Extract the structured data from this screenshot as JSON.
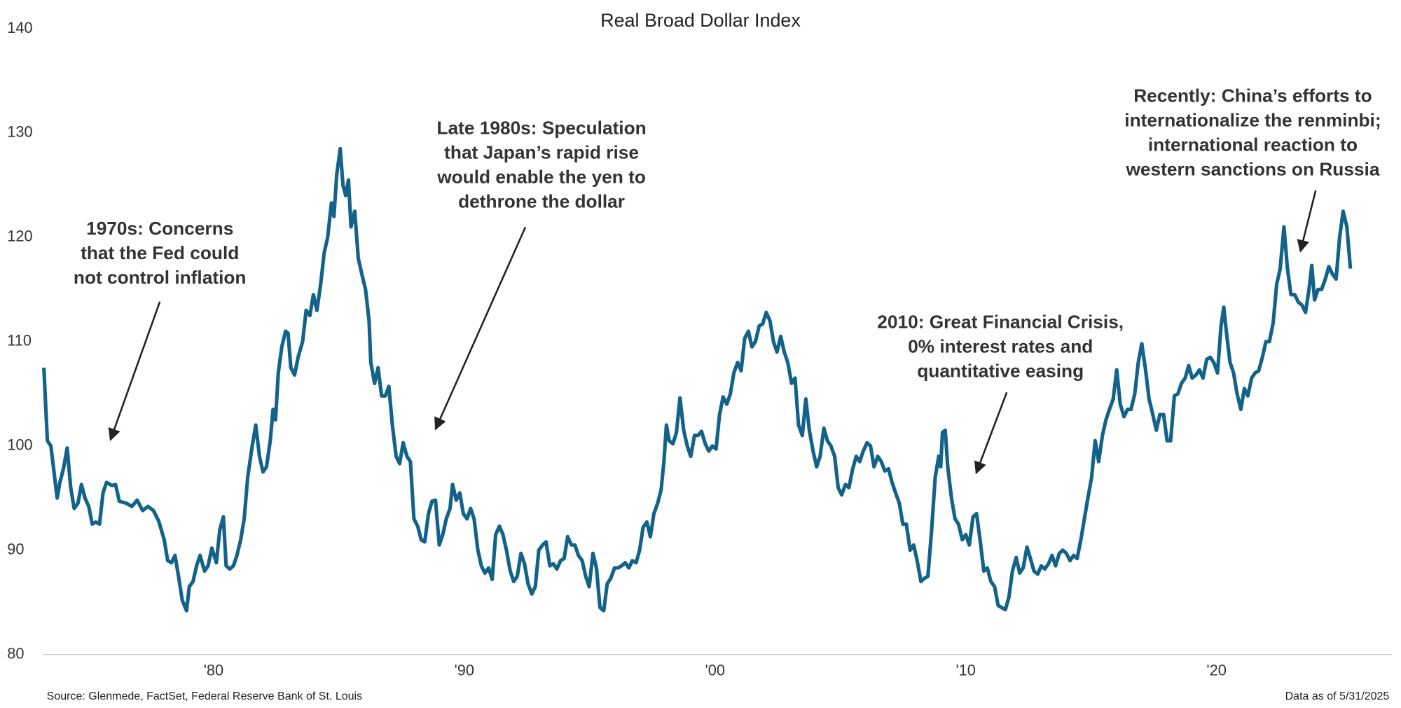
{
  "chart_data": {
    "type": "line",
    "title": "Real Broad Dollar Index",
    "color": "#13628a",
    "source": "Source: Glenmede, FactSet, Federal Reserve Bank of St. Louis",
    "note": "Data as of 5/31/2025",
    "xlim": [
      1973.2,
      2027
    ],
    "ylim": [
      80,
      140
    ],
    "yticks": [
      80,
      90,
      100,
      110,
      120,
      130,
      140
    ],
    "xticks": [
      {
        "value": 1980,
        "label": "'80"
      },
      {
        "value": 1990,
        "label": "'90"
      },
      {
        "value": 2000,
        "label": "'00"
      },
      {
        "value": 2010,
        "label": "'10"
      },
      {
        "value": 2020,
        "label": "'20"
      }
    ],
    "annotations": [
      {
        "lines": [
          "1970s: Concerns",
          "that the Fed could",
          "not control inflation"
        ]
      },
      {
        "lines": [
          "Late 1980s: Speculation",
          "that Japan’s rapid rise",
          "would enable the yen to",
          "dethrone the dollar"
        ]
      },
      {
        "lines": [
          "2010: Great Financial Crisis,",
          "0% interest rates and",
          "quantitative easing"
        ]
      },
      {
        "lines": [
          "Recently: China’s efforts to",
          "internationalize the renminbi;",
          "international reaction to",
          "western sanctions on Russia"
        ]
      }
    ],
    "x": [
      1973.23,
      1973.37,
      1973.51,
      1973.66,
      1973.76,
      1973.87,
      1974.01,
      1974.16,
      1974.3,
      1974.44,
      1974.59,
      1974.73,
      1974.87,
      1975.02,
      1975.16,
      1975.3,
      1975.45,
      1975.59,
      1975.73,
      1975.95,
      1976.09,
      1976.24,
      1976.52,
      1976.74,
      1976.95,
      1977.17,
      1977.38,
      1977.6,
      1977.81,
      1978.03,
      1978.17,
      1978.32,
      1978.46,
      1978.6,
      1978.75,
      1978.92,
      1979.03,
      1979.18,
      1979.32,
      1979.46,
      1979.64,
      1979.78,
      1979.93,
      1980.11,
      1980.25,
      1980.39,
      1980.5,
      1980.65,
      1980.79,
      1980.93,
      1981.08,
      1981.22,
      1981.36,
      1981.54,
      1981.68,
      1981.83,
      1981.97,
      1982.11,
      1982.26,
      1982.37,
      1982.47,
      1982.58,
      1982.72,
      1982.87,
      1982.97,
      1983.08,
      1983.23,
      1983.37,
      1983.55,
      1983.69,
      1983.84,
      1983.98,
      1984.12,
      1984.27,
      1984.41,
      1984.55,
      1984.7,
      1984.8,
      1984.91,
      1985.05,
      1985.16,
      1985.27,
      1985.38,
      1985.48,
      1985.63,
      1985.77,
      1985.91,
      1986.06,
      1986.2,
      1986.27,
      1986.42,
      1986.56,
      1986.7,
      1986.85,
      1986.99,
      1987.13,
      1987.28,
      1987.42,
      1987.56,
      1987.71,
      1987.85,
      1987.99,
      1988.14,
      1988.28,
      1988.42,
      1988.57,
      1988.71,
      1988.85,
      1989.0,
      1989.14,
      1989.28,
      1989.43,
      1989.53,
      1989.68,
      1989.82,
      1989.96,
      1990.11,
      1990.25,
      1990.39,
      1990.54,
      1990.68,
      1990.82,
      1990.97,
      1991.11,
      1991.25,
      1991.4,
      1991.54,
      1991.68,
      1991.83,
      1991.97,
      1992.11,
      1992.26,
      1992.4,
      1992.54,
      1992.69,
      1992.83,
      1992.97,
      1993.12,
      1993.26,
      1993.41,
      1993.55,
      1993.69,
      1993.84,
      1993.98,
      1994.12,
      1994.27,
      1994.41,
      1994.55,
      1994.7,
      1994.84,
      1994.98,
      1995.13,
      1995.27,
      1995.41,
      1995.56,
      1995.7,
      1995.84,
      1995.99,
      1996.13,
      1996.27,
      1996.42,
      1996.56,
      1996.7,
      1996.85,
      1996.99,
      1997.13,
      1997.28,
      1997.42,
      1997.56,
      1997.71,
      1997.85,
      1997.96,
      1998.06,
      1998.17,
      1998.32,
      1998.46,
      1998.6,
      1998.75,
      1998.89,
      1999.03,
      1999.18,
      1999.32,
      1999.46,
      1999.61,
      1999.75,
      1999.89,
      2000.04,
      2000.18,
      2000.32,
      2000.47,
      2000.61,
      2000.75,
      2000.9,
      2001.04,
      2001.18,
      2001.33,
      2001.47,
      2001.61,
      2001.76,
      2001.9,
      2002.04,
      2002.19,
      2002.33,
      2002.47,
      2002.62,
      2002.76,
      2002.9,
      2003.05,
      2003.19,
      2003.33,
      2003.48,
      2003.62,
      2003.76,
      2003.91,
      2004.05,
      2004.19,
      2004.34,
      2004.48,
      2004.62,
      2004.77,
      2004.91,
      2005.05,
      2005.2,
      2005.34,
      2005.48,
      2005.63,
      2005.77,
      2005.91,
      2006.06,
      2006.2,
      2006.34,
      2006.49,
      2006.63,
      2006.77,
      2006.92,
      2007.06,
      2007.2,
      2007.35,
      2007.49,
      2007.63,
      2007.78,
      2007.92,
      2008.06,
      2008.21,
      2008.35,
      2008.49,
      2008.64,
      2008.78,
      2008.92,
      2009.0,
      2009.07,
      2009.18,
      2009.28,
      2009.43,
      2009.57,
      2009.71,
      2009.86,
      2010.0,
      2010.14,
      2010.29,
      2010.43,
      2010.57,
      2010.72,
      2010.86,
      2011.0,
      2011.15,
      2011.29,
      2011.43,
      2011.58,
      2011.72,
      2011.86,
      2012.01,
      2012.15,
      2012.29,
      2012.44,
      2012.58,
      2012.72,
      2012.87,
      2013.01,
      2013.15,
      2013.3,
      2013.44,
      2013.58,
      2013.73,
      2013.87,
      2014.01,
      2014.16,
      2014.3,
      2014.44,
      2014.59,
      2014.73,
      2014.87,
      2015.02,
      2015.16,
      2015.3,
      2015.45,
      2015.59,
      2015.73,
      2015.88,
      2016.02,
      2016.16,
      2016.31,
      2016.45,
      2016.59,
      2016.74,
      2016.88,
      2017.02,
      2017.17,
      2017.31,
      2017.46,
      2017.6,
      2017.74,
      2017.89,
      2018.03,
      2018.17,
      2018.32,
      2018.46,
      2018.6,
      2018.75,
      2018.89,
      2019.03,
      2019.18,
      2019.32,
      2019.46,
      2019.61,
      2019.75,
      2019.89,
      2020.04,
      2020.18,
      2020.29,
      2020.39,
      2020.54,
      2020.68,
      2020.82,
      2020.97,
      2021.11,
      2021.25,
      2021.4,
      2021.54,
      2021.68,
      2021.83,
      2021.97,
      2022.11,
      2022.26,
      2022.4,
      2022.54,
      2022.69,
      2022.83,
      2022.97,
      2023.12,
      2023.26,
      2023.41,
      2023.55,
      2023.69,
      2023.8,
      2023.91,
      2024.05,
      2024.19,
      2024.34,
      2024.48,
      2024.62,
      2024.77,
      2024.91,
      2025.05,
      2025.2,
      2025.34
    ],
    "values": [
      107.5,
      100.5,
      100,
      97,
      95,
      96.5,
      97.8,
      99.8,
      96,
      94,
      94.5,
      96.3,
      95,
      94.2,
      92.5,
      92.7,
      92.5,
      95.5,
      96.5,
      96.2,
      96.3,
      94.7,
      94.5,
      94.2,
      94.8,
      93.8,
      94.2,
      93.8,
      92.8,
      91,
      89,
      88.8,
      89.5,
      87.5,
      85.2,
      84.2,
      86.5,
      87,
      88.5,
      89.5,
      88,
      88.5,
      90.2,
      88.8,
      92,
      93.2,
      88.5,
      88.2,
      88.5,
      89.5,
      91,
      93,
      97,
      100,
      102,
      99,
      97.5,
      98,
      100.5,
      103.5,
      102.5,
      107,
      109.5,
      111,
      110.8,
      107.5,
      106.8,
      108.5,
      110,
      113,
      112.5,
      114.5,
      113,
      115.5,
      118.5,
      120,
      123.3,
      122,
      126,
      128.5,
      125,
      124,
      125.5,
      121,
      122.5,
      118,
      116.5,
      115,
      112,
      108,
      106,
      107.5,
      104.8,
      104.8,
      105.7,
      102,
      99,
      98.3,
      100.3,
      99,
      98.5,
      93,
      92.3,
      91,
      90.8,
      93.5,
      94.7,
      94.8,
      90.5,
      91.5,
      93,
      94,
      96.3,
      94.8,
      95.5,
      93.5,
      93,
      94,
      93,
      90,
      88.5,
      87.8,
      88.3,
      87.2,
      91.5,
      92.3,
      91.5,
      90,
      88,
      87,
      87.5,
      89.7,
      88.7,
      86.8,
      85.8,
      86.5,
      90,
      90.5,
      90.8,
      88.5,
      88.7,
      88.2,
      89,
      89.2,
      91.3,
      90.5,
      90.5,
      89.5,
      89,
      87.5,
      86.5,
      89.7,
      88.3,
      84.5,
      84.2,
      86.8,
      87.3,
      88.3,
      88.3,
      88.5,
      88.8,
      88.3,
      89,
      88.8,
      90,
      92.2,
      92.7,
      91.3,
      93.5,
      94.5,
      95.8,
      98.5,
      102,
      100.5,
      100.2,
      101.3,
      104.6,
      101.5,
      100,
      99,
      101,
      101,
      101.4,
      100.2,
      99.5,
      100,
      99.7,
      103,
      104.7,
      104,
      105,
      107,
      108,
      107.2,
      110.3,
      111,
      109.5,
      110,
      111.5,
      111.7,
      112.8,
      112,
      110,
      109,
      110.5,
      109,
      108,
      106,
      106.5,
      102,
      101,
      104.5,
      101.5,
      99.5,
      98,
      99,
      101.7,
      100.5,
      100,
      99,
      96,
      95.3,
      96.3,
      96,
      97.7,
      99,
      98.5,
      99.5,
      100.3,
      100,
      98,
      99,
      98.5,
      97.6,
      97.8,
      96.5,
      95.5,
      94.5,
      92.5,
      92.5,
      90,
      90.5,
      89,
      87,
      87.3,
      87.5,
      92,
      97,
      99,
      98,
      101.3,
      101.5,
      98,
      95,
      93,
      92.5,
      91,
      91.5,
      90.5,
      93.2,
      93.5,
      91,
      88,
      88.3,
      87,
      86.5,
      84.7,
      84.5,
      84.3,
      85.5,
      88,
      89.3,
      87.8,
      88.3,
      90.3,
      89.2,
      88,
      87.7,
      88.5,
      88.2,
      88.7,
      89.5,
      88.5,
      89.7,
      90,
      89.7,
      89,
      89.5,
      89.2,
      91,
      93,
      95,
      97,
      100.5,
      98.5,
      101,
      102.5,
      103.5,
      104.5,
      107.3,
      104,
      102.8,
      103.5,
      103.5,
      105,
      108,
      109.8,
      107.3,
      104.5,
      103,
      101.5,
      103,
      103,
      100.5,
      100.5,
      104.8,
      105,
      106,
      106.5,
      107.7,
      106.5,
      106.8,
      107.3,
      106.5,
      108.3,
      108.5,
      108,
      107,
      111.5,
      113.3,
      111,
      108,
      107,
      105,
      103.5,
      105.5,
      104.8,
      106.5,
      107,
      107.2,
      108.5,
      110,
      110,
      111.8,
      115.5,
      117,
      121,
      117,
      114.5,
      114.5,
      113.8,
      113.5,
      112.8,
      115,
      117.3,
      114,
      115,
      115,
      116,
      117.2,
      116.5,
      116,
      120,
      122.5,
      121,
      117
    ]
  }
}
